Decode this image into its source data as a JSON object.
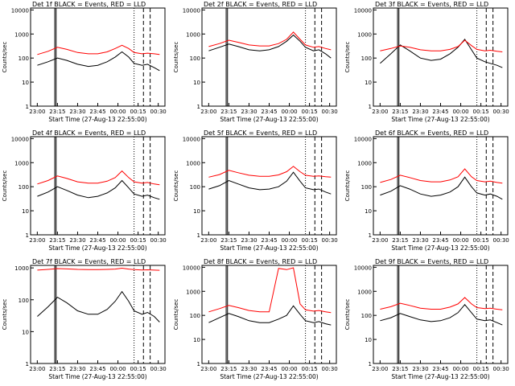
{
  "window": {
    "title": ""
  },
  "colors": {
    "events": "#000000",
    "lld": "#ff0000",
    "background": "#ffffff"
  },
  "shared": {
    "xlabel": "Start Time (27-Aug-13 22:55:00)",
    "ylabel": "Counts/sec",
    "x_ticks": [
      "23:00",
      "23:15",
      "23:30",
      "23:45",
      "00:00",
      "00:15",
      "00:30"
    ],
    "y_ticks": [
      "1",
      "10",
      "100",
      "1000",
      "10000"
    ],
    "yscale": "log",
    "markers": {
      "dotted_x": "00:12",
      "dashed_x": [
        "00:19",
        "00:24"
      ],
      "solid_x": [
        "23:13",
        "23:14"
      ]
    }
  },
  "chart_data": [
    {
      "type": "line",
      "title": "Det 1f BLACK = Events, RED = LLD",
      "xlabel": "Start Time (27-Aug-13 22:55:00)",
      "ylabel": "Counts/sec",
      "x": [
        "23:00",
        "23:08",
        "23:15",
        "23:22",
        "23:30",
        "23:38",
        "23:45",
        "23:52",
        "23:58",
        "00:03",
        "00:08",
        "00:12",
        "00:18",
        "00:22",
        "00:27",
        "00:31"
      ],
      "ylim": [
        1,
        12000
      ],
      "series": [
        {
          "name": "Events",
          "values": [
            50,
            70,
            100,
            80,
            55,
            45,
            50,
            70,
            110,
            180,
            110,
            60,
            50,
            55,
            40,
            30
          ]
        },
        {
          "name": "LLD",
          "values": [
            140,
            190,
            280,
            230,
            170,
            150,
            150,
            180,
            250,
            340,
            250,
            170,
            150,
            160,
            150,
            140
          ]
        }
      ]
    },
    {
      "type": "line",
      "title": "Det 2f BLACK = Events, RED = LLD",
      "xlabel": "Start Time (27-Aug-13 22:55:00)",
      "ylabel": "Counts/sec",
      "x": [
        "23:00",
        "23:08",
        "23:15",
        "23:22",
        "23:30",
        "23:38",
        "23:45",
        "23:52",
        "23:58",
        "00:03",
        "00:08",
        "00:12",
        "00:18",
        "00:22",
        "00:27",
        "00:31"
      ],
      "ylim": [
        1,
        12000
      ],
      "series": [
        {
          "name": "Events",
          "values": [
            200,
            280,
            380,
            300,
            220,
            200,
            220,
            300,
            500,
            900,
            500,
            280,
            200,
            220,
            150,
            100
          ]
        },
        {
          "name": "LLD",
          "values": [
            300,
            400,
            550,
            450,
            350,
            320,
            320,
            400,
            600,
            1200,
            600,
            350,
            280,
            300,
            250,
            220
          ]
        }
      ]
    },
    {
      "type": "line",
      "title": "Det 3f BLACK = Events, RED = LLD",
      "xlabel": "Start Time (27-Aug-13 22:55:00)",
      "ylabel": "Counts/sec",
      "x": [
        "23:00",
        "23:08",
        "23:15",
        "23:22",
        "23:30",
        "23:38",
        "23:45",
        "23:52",
        "23:58",
        "00:03",
        "00:08",
        "00:12",
        "00:18",
        "00:22",
        "00:27",
        "00:31"
      ],
      "ylim": [
        1,
        12000
      ],
      "series": [
        {
          "name": "Events",
          "values": [
            60,
            150,
            350,
            200,
            100,
            80,
            90,
            150,
            280,
            600,
            220,
            100,
            70,
            60,
            50,
            40
          ]
        },
        {
          "name": "LLD",
          "values": [
            200,
            250,
            320,
            280,
            220,
            200,
            200,
            230,
            300,
            550,
            330,
            230,
            200,
            210,
            190,
            180
          ]
        }
      ]
    },
    {
      "type": "line",
      "title": "Det 4f BLACK = Events, RED = LLD",
      "xlabel": "Start Time (27-Aug-13 22:55:00)",
      "ylabel": "Counts/sec",
      "x": [
        "23:00",
        "23:08",
        "23:15",
        "23:22",
        "23:30",
        "23:38",
        "23:45",
        "23:52",
        "23:58",
        "00:03",
        "00:08",
        "00:12",
        "00:18",
        "00:22",
        "00:27",
        "00:31"
      ],
      "ylim": [
        1,
        12000
      ],
      "series": [
        {
          "name": "Events",
          "values": [
            40,
            60,
            100,
            70,
            45,
            35,
            40,
            55,
            90,
            180,
            90,
            50,
            40,
            45,
            35,
            30
          ]
        },
        {
          "name": "LLD",
          "values": [
            130,
            180,
            280,
            220,
            160,
            140,
            140,
            170,
            240,
            450,
            240,
            160,
            140,
            150,
            130,
            120
          ]
        }
      ]
    },
    {
      "type": "line",
      "title": "Det 5f BLACK = Events, RED = LLD",
      "xlabel": "Start Time (27-Aug-13 22:55:00)",
      "ylabel": "Counts/sec",
      "x": [
        "23:00",
        "23:08",
        "23:15",
        "23:22",
        "23:30",
        "23:38",
        "23:45",
        "23:52",
        "23:58",
        "00:03",
        "00:08",
        "00:12",
        "00:18",
        "00:22",
        "00:27",
        "00:31"
      ],
      "ylim": [
        1,
        12000
      ],
      "series": [
        {
          "name": "Events",
          "values": [
            80,
            110,
            180,
            130,
            90,
            75,
            80,
            100,
            170,
            400,
            170,
            90,
            75,
            80,
            60,
            50
          ]
        },
        {
          "name": "LLD",
          "values": [
            250,
            320,
            480,
            380,
            300,
            270,
            270,
            310,
            420,
            700,
            420,
            300,
            270,
            280,
            260,
            250
          ]
        }
      ]
    },
    {
      "type": "line",
      "title": "Det 6f BLACK = Events, RED = LLD",
      "xlabel": "Start Time (27-Aug-13 22:55:00)",
      "ylabel": "Counts/sec",
      "x": [
        "23:00",
        "23:08",
        "23:15",
        "23:22",
        "23:30",
        "23:38",
        "23:45",
        "23:52",
        "23:58",
        "00:03",
        "00:08",
        "00:12",
        "00:18",
        "00:22",
        "00:27",
        "00:31"
      ],
      "ylim": [
        1,
        12000
      ],
      "series": [
        {
          "name": "Events",
          "values": [
            45,
            65,
            110,
            80,
            50,
            40,
            45,
            60,
            100,
            250,
            100,
            55,
            45,
            50,
            40,
            30
          ]
        },
        {
          "name": "LLD",
          "values": [
            150,
            200,
            300,
            240,
            180,
            160,
            160,
            190,
            260,
            550,
            260,
            180,
            160,
            170,
            150,
            140
          ]
        }
      ]
    },
    {
      "type": "line",
      "title": "Det 7f BLACK = Events, RED = LLD",
      "xlabel": "Start Time (27-Aug-13 22:55:00)",
      "ylabel": "Counts/sec",
      "x": [
        "23:00",
        "23:08",
        "23:15",
        "23:22",
        "23:30",
        "23:38",
        "23:45",
        "23:52",
        "23:58",
        "00:03",
        "00:08",
        "00:12",
        "00:18",
        "00:22",
        "00:27",
        "00:31"
      ],
      "ylim": [
        1,
        1200
      ],
      "series": [
        {
          "name": "Events",
          "values": [
            30,
            60,
            120,
            80,
            45,
            35,
            35,
            50,
            90,
            180,
            90,
            45,
            35,
            40,
            30,
            20
          ]
        },
        {
          "name": "LLD",
          "values": [
            850,
            900,
            950,
            930,
            900,
            880,
            880,
            900,
            920,
            980,
            920,
            880,
            860,
            870,
            850,
            840
          ]
        }
      ]
    },
    {
      "type": "line",
      "title": "Det 8f BLACK = Events, RED = LLD",
      "xlabel": "Start Time (27-Aug-13 22:55:00)",
      "ylabel": "Counts/sec",
      "x": [
        "23:00",
        "23:08",
        "23:15",
        "23:22",
        "23:30",
        "23:38",
        "23:45",
        "23:52",
        "23:58",
        "00:03",
        "00:08",
        "00:12",
        "00:18",
        "00:22",
        "00:27",
        "00:31"
      ],
      "ylim": [
        1,
        12000
      ],
      "series": [
        {
          "name": "Events",
          "values": [
            50,
            80,
            120,
            90,
            60,
            50,
            50,
            70,
            100,
            250,
            110,
            60,
            50,
            55,
            45,
            40
          ]
        },
        {
          "name": "LLD",
          "values": [
            140,
            190,
            260,
            210,
            160,
            140,
            140,
            9000,
            8000,
            9500,
            300,
            170,
            150,
            160,
            140,
            130
          ]
        }
      ]
    },
    {
      "type": "line",
      "title": "Det 9f BLACK = Events, RED = LLD",
      "xlabel": "Start Time (27-Aug-13 22:55:00)",
      "ylabel": "Counts/sec",
      "x": [
        "23:00",
        "23:08",
        "23:15",
        "23:22",
        "23:30",
        "23:38",
        "23:45",
        "23:52",
        "23:58",
        "00:03",
        "00:08",
        "00:12",
        "00:18",
        "00:22",
        "00:27",
        "00:31"
      ],
      "ylim": [
        1,
        12000
      ],
      "series": [
        {
          "name": "Events",
          "values": [
            60,
            80,
            120,
            90,
            65,
            55,
            60,
            80,
            130,
            280,
            130,
            70,
            60,
            65,
            50,
            40
          ]
        },
        {
          "name": "LLD",
          "values": [
            180,
            230,
            320,
            260,
            200,
            180,
            180,
            220,
            300,
            550,
            300,
            210,
            190,
            200,
            180,
            170
          ]
        }
      ]
    }
  ]
}
